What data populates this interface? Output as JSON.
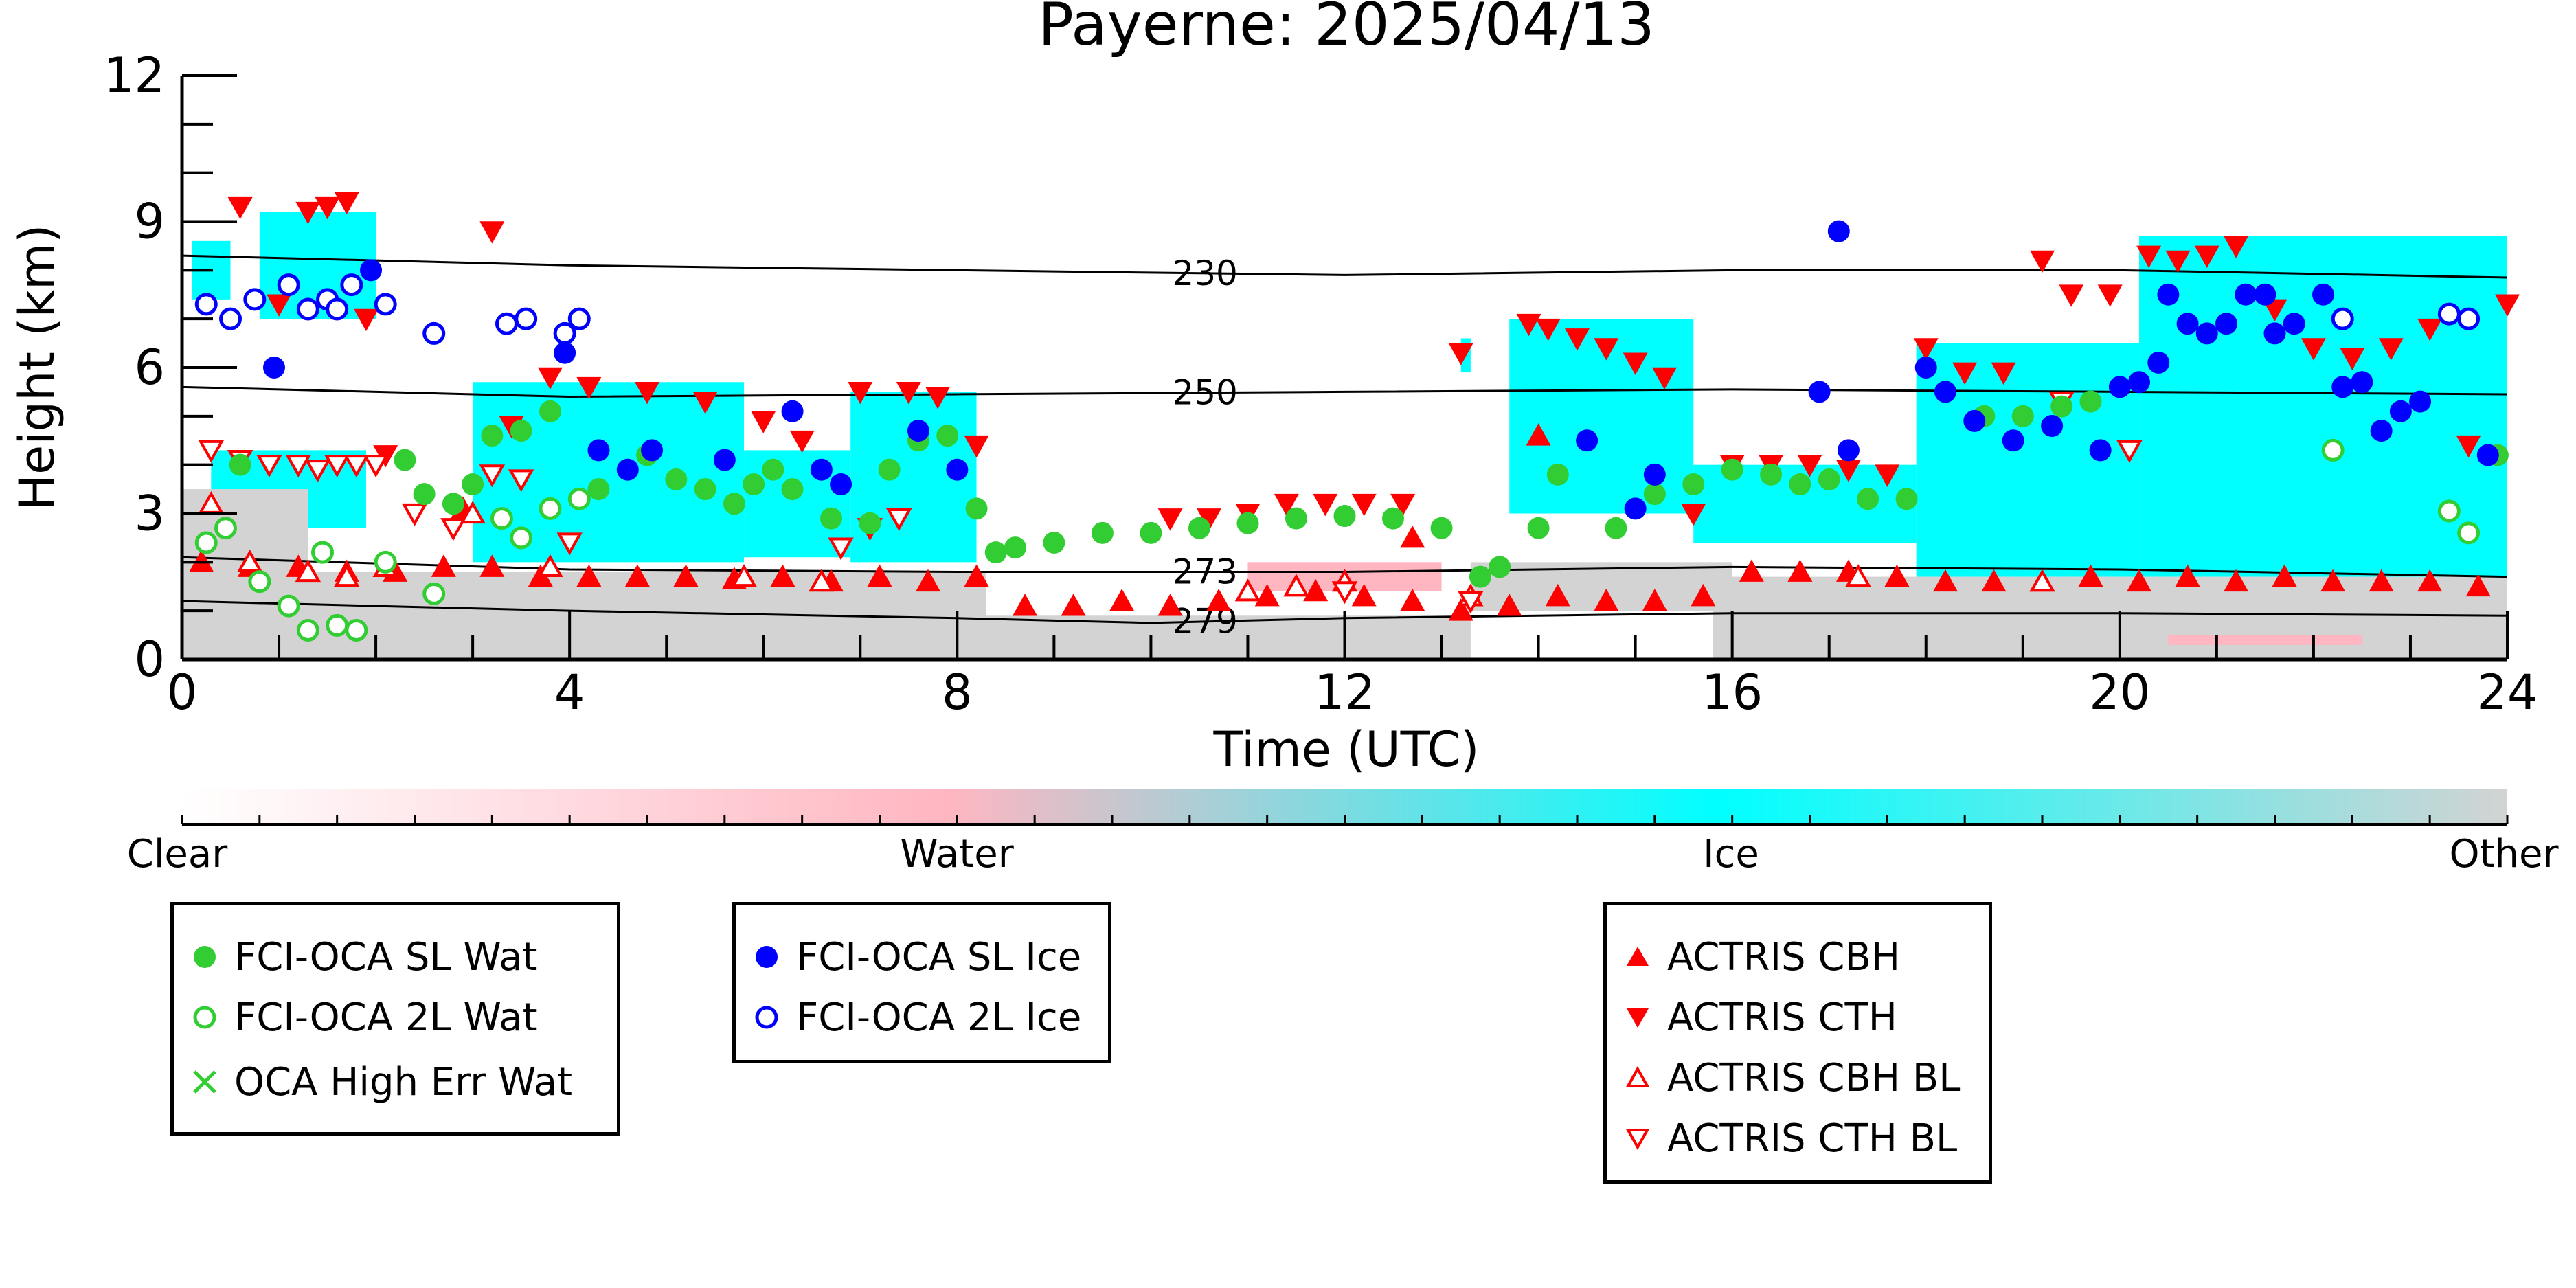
{
  "chart_data": {
    "type": "scatter",
    "title": "Payerne: 2025/04/13",
    "xlabel": "Time (UTC)",
    "ylabel": "Height (km)",
    "xlim": [
      0,
      24
    ],
    "ylim": [
      0,
      12
    ],
    "x_ticks": [
      "0",
      "4",
      "8",
      "12",
      "16",
      "20",
      "24"
    ],
    "y_ticks": [
      "0",
      "3",
      "6",
      "9",
      "12"
    ],
    "colorbar": {
      "labels": [
        "Clear",
        "Water",
        "Ice",
        "Other"
      ],
      "colors": {
        "clear": "#ffffff",
        "water": "#ffb6c1",
        "ice": "#00ffff",
        "other": "#d3d3d3"
      }
    },
    "isotherms": [
      {
        "label": "230",
        "x": [
          0,
          4,
          8,
          12,
          16,
          20,
          24
        ],
        "y": [
          8.3,
          8.1,
          8.0,
          7.9,
          8.0,
          8.0,
          7.85
        ]
      },
      {
        "label": "250",
        "x": [
          0,
          4,
          8,
          12,
          16,
          20,
          24
        ],
        "y": [
          5.6,
          5.4,
          5.45,
          5.5,
          5.55,
          5.5,
          5.45
        ]
      },
      {
        "label": "273",
        "x": [
          0,
          4,
          8,
          12,
          16,
          20,
          24
        ],
        "y": [
          2.1,
          1.85,
          1.8,
          1.8,
          1.9,
          1.85,
          1.7
        ]
      },
      {
        "label": "279",
        "x": [
          0,
          4,
          8,
          10,
          12,
          16,
          20,
          24
        ],
        "y": [
          1.2,
          1.0,
          0.85,
          0.75,
          0.85,
          0.95,
          0.95,
          0.9
        ]
      }
    ],
    "cloud_layers": [
      {
        "phase": "ice",
        "x0": 0.3,
        "x1": 1.9,
        "y0": 2.7,
        "y1": 4.3
      },
      {
        "phase": "ice",
        "x0": 0.8,
        "x1": 2.0,
        "y0": 7.0,
        "y1": 9.2
      },
      {
        "phase": "ice",
        "x0": 0.1,
        "x1": 0.5,
        "y0": 7.4,
        "y1": 8.6
      },
      {
        "phase": "ice",
        "x0": 3.0,
        "x1": 5.8,
        "y0": 2.0,
        "y1": 5.7
      },
      {
        "phase": "ice",
        "x0": 5.8,
        "x1": 6.9,
        "y0": 2.1,
        "y1": 4.3
      },
      {
        "phase": "ice",
        "x0": 6.9,
        "x1": 8.2,
        "y0": 2.0,
        "y1": 5.5
      },
      {
        "phase": "ice",
        "x0": 13.2,
        "x1": 13.3,
        "y0": 5.9,
        "y1": 6.6
      },
      {
        "phase": "ice",
        "x0": 13.7,
        "x1": 15.6,
        "y0": 3.0,
        "y1": 7.0
      },
      {
        "phase": "ice",
        "x0": 15.6,
        "x1": 17.9,
        "y0": 2.4,
        "y1": 4.0
      },
      {
        "phase": "ice",
        "x0": 17.9,
        "x1": 20.2,
        "y0": 1.7,
        "y1": 6.5
      },
      {
        "phase": "ice",
        "x0": 20.2,
        "x1": 24.0,
        "y0": 1.7,
        "y1": 8.7
      },
      {
        "phase": "other",
        "x0": 0.0,
        "x1": 1.3,
        "y0": 0.0,
        "y1": 3.5
      },
      {
        "phase": "other",
        "x0": 1.3,
        "x1": 8.3,
        "y0": 0.0,
        "y1": 1.8
      },
      {
        "phase": "other",
        "x0": 8.3,
        "x1": 13.3,
        "y0": 0.0,
        "y1": 0.9
      },
      {
        "phase": "other",
        "x0": 15.8,
        "x1": 24.0,
        "y0": 0.0,
        "y1": 1.7
      },
      {
        "phase": "other",
        "x0": 13.3,
        "x1": 16.0,
        "y0": 1.0,
        "y1": 2.0
      },
      {
        "phase": "water",
        "x0": 11.0,
        "x1": 13.0,
        "y0": 1.4,
        "y1": 2.0
      },
      {
        "phase": "water",
        "x0": 20.5,
        "x1": 22.5,
        "y0": 0.3,
        "y1": 0.5
      }
    ],
    "series": [
      {
        "name": "FCI-OCA SL Wat",
        "x": [
          0.6,
          2.3,
          2.5,
          2.8,
          3.0,
          3.2,
          3.5,
          3.8,
          4.3,
          4.8,
          5.1,
          5.4,
          5.7,
          5.9,
          6.1,
          6.3,
          6.7,
          7.1,
          7.3,
          7.6,
          7.9,
          8.2,
          8.4,
          8.6,
          9.0,
          9.5,
          10.0,
          10.5,
          11.0,
          11.5,
          12.0,
          12.5,
          13.0,
          13.4,
          13.6,
          14.0,
          14.2,
          14.8,
          15.2,
          15.6,
          16.0,
          16.4,
          16.7,
          17.0,
          17.4,
          17.8,
          18.2,
          18.6,
          19.0,
          19.4,
          19.7,
          23.9
        ],
        "y": [
          4.0,
          4.1,
          3.4,
          3.2,
          3.6,
          4.6,
          4.7,
          5.1,
          3.5,
          4.2,
          3.7,
          3.5,
          3.2,
          3.6,
          3.9,
          3.5,
          2.9,
          2.8,
          3.9,
          4.5,
          4.6,
          3.1,
          2.2,
          2.3,
          2.4,
          2.6,
          2.6,
          2.7,
          2.8,
          2.9,
          2.95,
          2.9,
          2.7,
          1.7,
          1.9,
          2.7,
          3.8,
          2.7,
          3.4,
          3.6,
          3.9,
          3.8,
          3.6,
          3.7,
          3.3,
          3.3,
          5.5,
          5.0,
          5.0,
          5.2,
          5.3,
          4.2
        ]
      },
      {
        "name": "FCI-OCA 2L Wat",
        "x": [
          0.25,
          0.45,
          0.8,
          1.1,
          1.3,
          1.45,
          1.6,
          1.8,
          2.1,
          2.6,
          3.3,
          3.5,
          3.8,
          4.1,
          22.2,
          23.4,
          23.6
        ],
        "y": [
          2.4,
          2.7,
          1.6,
          1.1,
          0.6,
          2.2,
          0.7,
          0.6,
          2.0,
          1.35,
          2.9,
          2.5,
          3.1,
          3.3,
          4.3,
          3.05,
          2.6
        ]
      },
      {
        "name": "OCA High Err Wat",
        "x": [],
        "y": []
      },
      {
        "name": "FCI-OCA SL Ice",
        "x": [
          0.95,
          1.95,
          3.95,
          4.3,
          4.6,
          4.85,
          5.6,
          6.3,
          6.6,
          6.8,
          7.6,
          8.0,
          14.5,
          15.0,
          15.2,
          16.9,
          17.1,
          17.2,
          18.0,
          18.2,
          18.5,
          18.9,
          19.3,
          19.8,
          20.0,
          20.2,
          20.4,
          20.5,
          20.7,
          20.9,
          21.1,
          21.3,
          21.5,
          21.6,
          21.8,
          22.1,
          22.3,
          22.5,
          22.7,
          22.9,
          23.1,
          23.8
        ],
        "y": [
          6.0,
          8.0,
          6.3,
          4.3,
          3.9,
          4.3,
          4.1,
          5.1,
          3.9,
          3.6,
          4.7,
          3.9,
          4.5,
          3.1,
          3.8,
          5.5,
          8.8,
          4.3,
          6.0,
          5.5,
          4.9,
          4.5,
          4.8,
          4.3,
          5.6,
          5.7,
          6.1,
          7.5,
          6.9,
          6.7,
          6.9,
          7.5,
          7.5,
          6.7,
          6.9,
          7.5,
          5.6,
          5.7,
          4.7,
          5.1,
          5.3,
          4.2
        ]
      },
      {
        "name": "FCI-OCA 2L Ice",
        "x": [
          0.25,
          0.5,
          0.75,
          1.1,
          1.3,
          1.5,
          1.6,
          1.75,
          2.1,
          2.6,
          3.35,
          3.55,
          3.95,
          4.1,
          22.3,
          23.4,
          23.6
        ],
        "y": [
          7.3,
          7.0,
          7.4,
          7.7,
          7.2,
          7.4,
          7.2,
          7.7,
          7.3,
          6.7,
          6.9,
          7.0,
          6.7,
          7.0,
          7.0,
          7.1,
          7.0
        ]
      },
      {
        "name": "ACTRIS CBH",
        "x": [
          0.2,
          0.7,
          1.2,
          1.7,
          2.2,
          2.7,
          3.2,
          3.7,
          4.2,
          4.7,
          5.2,
          5.7,
          6.2,
          6.7,
          7.2,
          7.7,
          8.2,
          8.7,
          9.2,
          9.7,
          10.2,
          10.7,
          11.2,
          11.7,
          12.2,
          12.7,
          13.2,
          13.7,
          14.2,
          14.7,
          15.2,
          15.7,
          16.2,
          16.7,
          17.2,
          17.7,
          18.2,
          18.7,
          19.2,
          19.7,
          20.2,
          20.7,
          21.2,
          21.7,
          22.2,
          22.7,
          23.2,
          23.7,
          2.9,
          12.7,
          14.0
        ],
        "y": [
          2.0,
          1.9,
          1.9,
          1.8,
          1.8,
          1.9,
          1.9,
          1.7,
          1.7,
          1.7,
          1.7,
          1.65,
          1.7,
          1.6,
          1.7,
          1.6,
          1.7,
          1.1,
          1.1,
          1.2,
          1.1,
          1.2,
          1.3,
          1.4,
          1.3,
          1.2,
          1.0,
          1.1,
          1.3,
          1.2,
          1.2,
          1.3,
          1.8,
          1.8,
          1.8,
          1.7,
          1.6,
          1.6,
          1.6,
          1.7,
          1.6,
          1.7,
          1.6,
          1.7,
          1.6,
          1.6,
          1.6,
          1.5,
          3.1,
          2.5,
          4.6
        ]
      },
      {
        "name": "ACTRIS CTH",
        "x": [
          0.6,
          1.0,
          1.3,
          1.5,
          1.7,
          1.9,
          2.1,
          2.4,
          3.2,
          3.4,
          3.8,
          4.2,
          4.8,
          5.4,
          6.0,
          6.4,
          7.0,
          7.5,
          7.8,
          8.2,
          10.2,
          10.6,
          11.0,
          11.4,
          11.8,
          12.2,
          12.6,
          13.2,
          13.9,
          14.1,
          14.4,
          14.7,
          15.0,
          15.3,
          15.6,
          16.0,
          16.4,
          16.8,
          17.2,
          17.6,
          18.0,
          18.4,
          18.8,
          19.2,
          19.5,
          19.9,
          20.3,
          20.6,
          20.9,
          21.2,
          21.6,
          22.0,
          22.4,
          22.8,
          23.2,
          23.6,
          24.0
        ],
        "y": [
          9.3,
          7.3,
          9.2,
          9.3,
          9.4,
          7.0,
          4.2,
          3.0,
          8.8,
          4.8,
          5.8,
          5.6,
          5.5,
          5.3,
          4.9,
          4.5,
          5.5,
          5.5,
          5.4,
          4.4,
          2.9,
          2.9,
          3.0,
          3.2,
          3.2,
          3.2,
          3.2,
          6.3,
          6.9,
          6.8,
          6.6,
          6.4,
          6.1,
          5.8,
          3.0,
          4.0,
          4.0,
          4.0,
          3.9,
          3.8,
          6.4,
          5.9,
          5.9,
          8.2,
          7.5,
          7.5,
          8.3,
          8.2,
          8.3,
          8.5,
          7.2,
          6.4,
          6.2,
          6.4,
          6.8,
          4.4,
          7.3
        ]
      },
      {
        "name": "ACTRIS CBH BL",
        "x": [
          0.3,
          0.7,
          1.3,
          1.7,
          2.1,
          3.0,
          3.8,
          5.8,
          6.6,
          11.0,
          11.5,
          12.0,
          13.3,
          17.3,
          19.2
        ],
        "y": [
          3.2,
          2.0,
          1.8,
          1.7,
          1.9,
          3.0,
          1.9,
          1.7,
          1.6,
          1.4,
          1.5,
          1.6,
          1.3,
          1.7,
          1.6
        ]
      },
      {
        "name": "ACTRIS CTH BL",
        "x": [
          0.3,
          0.6,
          0.9,
          1.2,
          1.4,
          1.6,
          1.8,
          2.0,
          2.4,
          2.8,
          3.2,
          3.5,
          4.0,
          6.8,
          7.1,
          7.4,
          12.0,
          13.3,
          19.4,
          20.1
        ],
        "y": [
          4.3,
          4.1,
          4.0,
          4.0,
          3.9,
          4.0,
          4.0,
          4.0,
          3.0,
          2.7,
          3.8,
          3.7,
          2.4,
          2.3,
          2.7,
          2.9,
          1.4,
          1.2,
          5.3,
          4.3
        ]
      }
    ]
  },
  "legend": {
    "box1": [
      "FCI-OCA SL Wat",
      "FCI-OCA 2L Wat",
      "OCA High Err Wat"
    ],
    "box2": [
      "FCI-OCA SL Ice",
      "FCI-OCA 2L Ice"
    ],
    "box3": [
      "ACTRIS CBH",
      "ACTRIS CTH",
      "ACTRIS CBH BL",
      "ACTRIS CTH BL"
    ]
  }
}
